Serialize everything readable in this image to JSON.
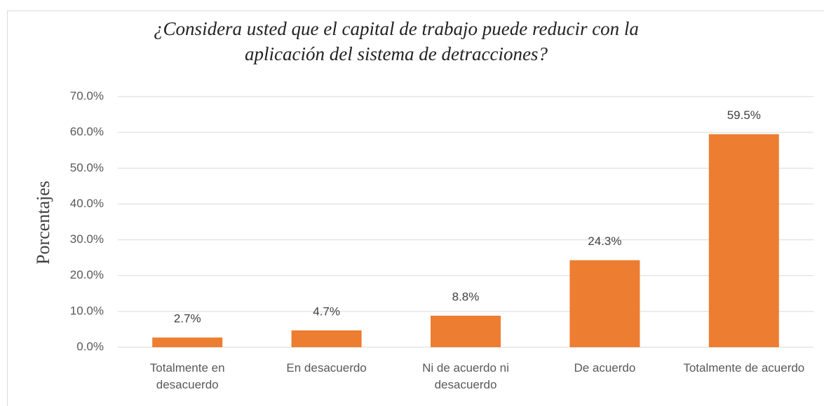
{
  "chart_data": {
    "type": "bar",
    "title": [
      "¿Considera usted que el capital de trabajo puede reducir con la",
      "aplicación del sistema de detracciones?"
    ],
    "y_label": "Porcentajes",
    "categories": [
      "Totalmente en desacuerdo",
      "En desacuerdo",
      "Ni de acuerdo ni desacuerdo",
      "De acuerdo",
      "Totalmente de acuerdo"
    ],
    "values": [
      2.7,
      4.7,
      8.8,
      24.3,
      59.5
    ],
    "value_labels": [
      "2.7%",
      "4.7%",
      "8.8%",
      "24.3%",
      "59.5%"
    ],
    "color": "#ed7d31",
    "ylim": [
      0,
      70
    ],
    "yticks": [
      {
        "value": 0,
        "label": "0.0%"
      },
      {
        "value": 10,
        "label": "10.0%"
      },
      {
        "value": 20,
        "label": "20.0%"
      },
      {
        "value": 30,
        "label": "30.0%"
      },
      {
        "value": 40,
        "label": "40.0%"
      },
      {
        "value": 50,
        "label": "50.0%"
      },
      {
        "value": 60,
        "label": "60.0%"
      },
      {
        "value": 70,
        "label": "70.0%"
      }
    ],
    "grid": true
  }
}
